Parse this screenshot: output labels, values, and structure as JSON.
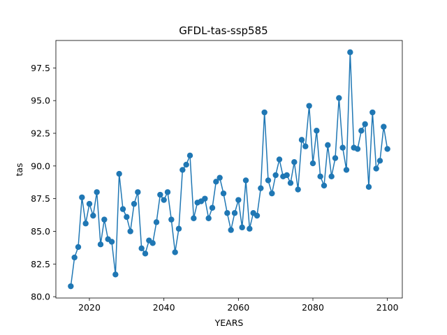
{
  "chart_data": {
    "type": "line",
    "title": "GFDL-tas-ssp585",
    "xlabel": "YEARS",
    "ylabel": "tas",
    "xlim": [
      2011,
      2104
    ],
    "ylim": [
      79.9,
      99.6
    ],
    "xticks": [
      2020,
      2040,
      2060,
      2080,
      2100
    ],
    "yticks": [
      80.0,
      82.5,
      85.0,
      87.5,
      90.0,
      92.5,
      95.0,
      97.5
    ],
    "grid": false,
    "legend": "none",
    "marker": "circle",
    "color": "#1f77b4",
    "series": [
      {
        "x": [
          2015,
          2016,
          2017,
          2018,
          2019,
          2020,
          2021,
          2022,
          2023,
          2024,
          2025,
          2026,
          2027,
          2028,
          2029,
          2030,
          2031,
          2032,
          2033,
          2034,
          2035,
          2036,
          2037,
          2038,
          2039,
          2040,
          2041,
          2042,
          2043,
          2044,
          2045,
          2046,
          2047,
          2048,
          2049,
          2050,
          2051,
          2052,
          2053,
          2054,
          2055,
          2056,
          2057,
          2058,
          2059,
          2060,
          2061,
          2062,
          2063,
          2064,
          2065,
          2066,
          2067,
          2068,
          2069,
          2070,
          2071,
          2072,
          2073,
          2074,
          2075,
          2076,
          2077,
          2078,
          2079,
          2080,
          2081,
          2082,
          2083,
          2084,
          2085,
          2086,
          2087,
          2088,
          2089,
          2090,
          2091,
          2092,
          2093,
          2094,
          2095,
          2096,
          2097,
          2098,
          2099,
          2100
        ],
        "y": [
          80.8,
          83.0,
          83.8,
          87.6,
          85.6,
          87.1,
          86.2,
          88.0,
          84.0,
          85.9,
          84.4,
          84.2,
          81.7,
          89.4,
          86.7,
          86.1,
          85.0,
          87.1,
          88.0,
          83.7,
          83.3,
          84.3,
          84.1,
          85.7,
          87.8,
          87.4,
          88.0,
          85.9,
          83.4,
          85.2,
          89.7,
          90.1,
          90.8,
          86.0,
          87.2,
          87.3,
          87.5,
          86.0,
          86.8,
          88.8,
          89.1,
          87.9,
          86.4,
          85.1,
          86.4,
          87.4,
          85.3,
          88.9,
          85.2,
          86.4,
          86.2,
          88.3,
          94.1,
          88.9,
          87.9,
          89.3,
          90.5,
          89.2,
          89.3,
          88.7,
          90.3,
          88.2,
          92.0,
          91.5,
          94.6,
          90.2,
          92.7,
          89.2,
          88.5,
          91.6,
          89.2,
          90.6,
          95.2,
          91.4,
          89.7,
          98.7,
          91.4,
          91.3,
          92.7,
          93.2,
          88.4,
          94.1,
          89.8,
          90.4,
          93.0,
          91.3
        ]
      }
    ]
  }
}
